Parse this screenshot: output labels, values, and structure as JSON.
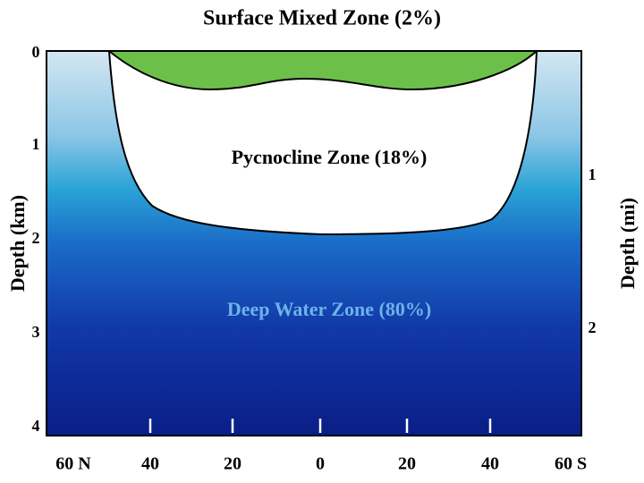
{
  "title": "Surface Mixed Zone (2%)",
  "zones": {
    "pycnocline": "Pycnocline Zone (18%)",
    "deep": "Deep Water Zone (80%)"
  },
  "left_axis": {
    "label": "Depth (km)",
    "ticks": [
      "0",
      "1",
      "2",
      "3",
      "4"
    ]
  },
  "right_axis": {
    "label": "Depth (mi)",
    "ticks": [
      "1",
      "2"
    ]
  },
  "x_axis": {
    "ticks": [
      "60 N",
      "40",
      "20",
      "0",
      "20",
      "40",
      "60 S"
    ]
  }
}
